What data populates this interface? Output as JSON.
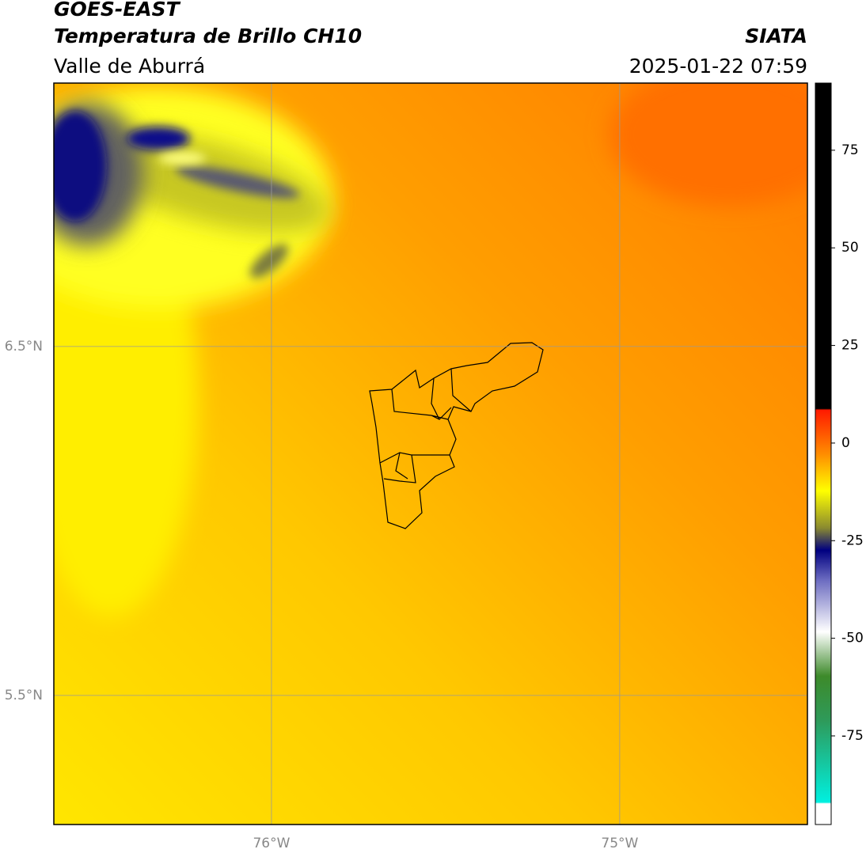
{
  "header": {
    "title": "GOES-EAST",
    "subtitle": "Temperatura de Brillo CH10",
    "region": "Valle de Aburrá",
    "source": "SIATA",
    "timestamp": "2025-01-22 07:59"
  },
  "map": {
    "xlim": [
      -76.625,
      -74.461
    ],
    "ylim": [
      5.13,
      7.255
    ],
    "xticks": [
      {
        "value": -76,
        "label": "76°W"
      },
      {
        "value": -75,
        "label": "75°W"
      }
    ],
    "yticks": [
      {
        "value": 6.5,
        "label": "6.5°N"
      },
      {
        "value": 5.5,
        "label": "5.5°N"
      }
    ],
    "grid": true
  },
  "colorbar": {
    "lim": [
      -97.7,
      92.2
    ],
    "ticks": [
      75,
      50,
      25,
      0,
      -25,
      -50,
      -75
    ]
  }
}
